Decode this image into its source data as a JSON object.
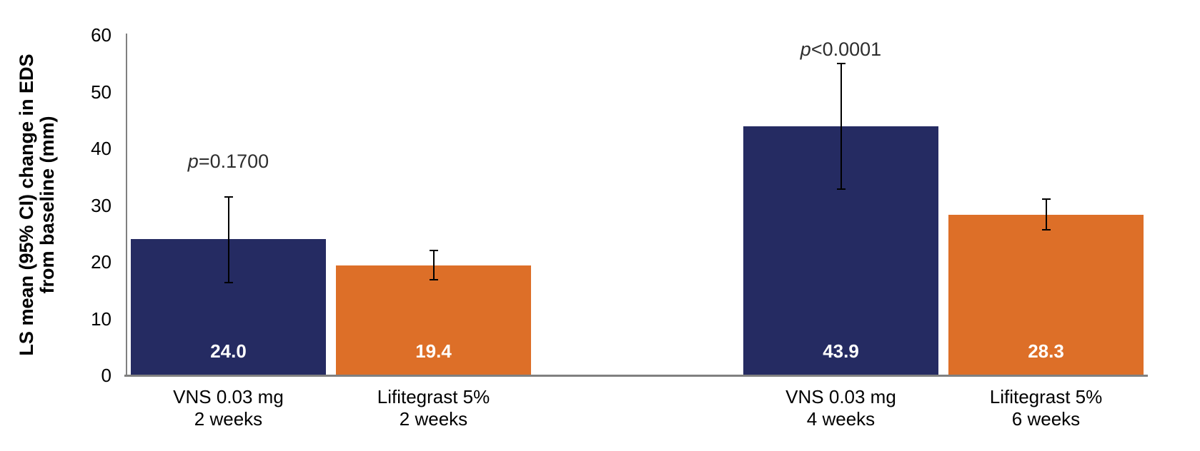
{
  "page": {
    "background": "#FFFFFF"
  },
  "colors": {
    "navy": "#252B62",
    "orange": "#DD6F28",
    "axis_gray": "#808080",
    "error_bar_black": "#000000",
    "value_label_white": "#FFFFFF",
    "tick_text_black": "#000000",
    "p_text_gray": "#2E2E2E"
  },
  "chart_data": {
    "type": "bar",
    "title": "",
    "ylabel_line1": "LS mean (95% CI) change in EDS",
    "ylabel_line2": "from baseline (mm)",
    "xlabel": "",
    "ylim": [
      0,
      60
    ],
    "ytick_step": 10,
    "yticks": [
      "0",
      "10",
      "20",
      "30",
      "40",
      "50",
      "60"
    ],
    "grid": false,
    "legend_position": "none",
    "error_bars_meaning": "95% CI",
    "bars": [
      {
        "category_line1": "VNS 0.03 mg",
        "category_line2": "2 weeks",
        "value": 24.0,
        "value_label": "24.0",
        "ci_low": 16.4,
        "ci_high": 31.5,
        "color_key": "navy",
        "p_annotation": "p=0.1700"
      },
      {
        "category_line1": "Lifitegrast 5%",
        "category_line2": "2 weeks",
        "value": 19.4,
        "value_label": "19.4",
        "ci_low": 16.8,
        "ci_high": 22.0,
        "color_key": "orange",
        "p_annotation": null
      },
      {
        "category_line1": "VNS 0.03 mg",
        "category_line2": "4 weeks",
        "value": 43.9,
        "value_label": "43.9",
        "ci_low": 32.8,
        "ci_high": 55.0,
        "color_key": "navy",
        "p_annotation": "p<0.0001"
      },
      {
        "category_line1": "Lifitegrast 5%",
        "category_line2": "6 weeks",
        "value": 28.3,
        "value_label": "28.3",
        "ci_low": 25.6,
        "ci_high": 31.1,
        "color_key": "orange",
        "p_annotation": null
      }
    ]
  }
}
